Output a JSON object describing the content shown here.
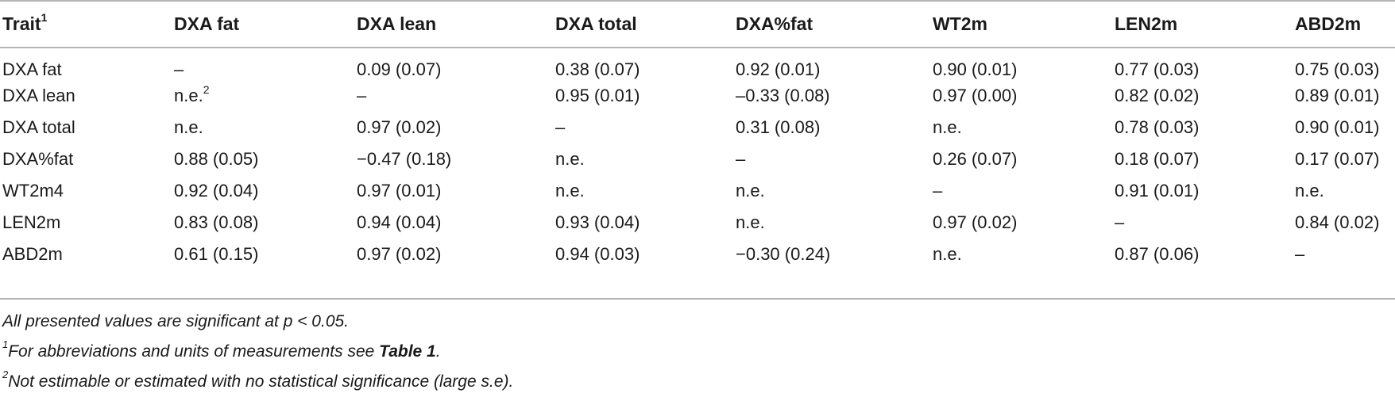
{
  "table": {
    "headers": [
      {
        "text": "Trait",
        "sup": "1"
      },
      {
        "text": "DXA fat",
        "sup": ""
      },
      {
        "text": "DXA lean",
        "sup": ""
      },
      {
        "text": "DXA total",
        "sup": ""
      },
      {
        "text": "DXA%fat",
        "sup": ""
      },
      {
        "text": "WT2m",
        "sup": ""
      },
      {
        "text": "LEN2m",
        "sup": ""
      },
      {
        "text": "ABD2m",
        "sup": ""
      }
    ],
    "rows": [
      [
        {
          "text": "DXA fat"
        },
        {
          "text": "–"
        },
        {
          "text": "0.09 (0.07)"
        },
        {
          "text": "0.38 (0.07)"
        },
        {
          "text": "0.92 (0.01)"
        },
        {
          "text": "0.90 (0.01)"
        },
        {
          "text": "0.77 (0.03)"
        },
        {
          "text": "0.75 (0.03)"
        }
      ],
      [
        {
          "text": "DXA lean"
        },
        {
          "text": "n.e.",
          "sup": "2"
        },
        {
          "text": "–"
        },
        {
          "text": "0.95 (0.01)"
        },
        {
          "text": "–0.33 (0.08)"
        },
        {
          "text": "0.97 (0.00)"
        },
        {
          "text": "0.82 (0.02)"
        },
        {
          "text": "0.89 (0.01)"
        }
      ],
      [
        {
          "text": "DXA total"
        },
        {
          "text": "n.e."
        },
        {
          "text": "0.97 (0.02)"
        },
        {
          "text": "–"
        },
        {
          "text": "0.31 (0.08)"
        },
        {
          "text": "n.e."
        },
        {
          "text": "0.78 (0.03)"
        },
        {
          "text": "0.90 (0.01)"
        }
      ],
      [
        {
          "text": "DXA%fat"
        },
        {
          "text": "0.88 (0.05)"
        },
        {
          "text": "−0.47 (0.18)"
        },
        {
          "text": "n.e."
        },
        {
          "text": "–"
        },
        {
          "text": "0.26 (0.07)"
        },
        {
          "text": "0.18 (0.07)"
        },
        {
          "text": "0.17 (0.07)"
        }
      ],
      [
        {
          "text": "WT2m4"
        },
        {
          "text": "0.92 (0.04)"
        },
        {
          "text": "0.97 (0.01)"
        },
        {
          "text": "n.e."
        },
        {
          "text": "n.e."
        },
        {
          "text": "–"
        },
        {
          "text": "0.91 (0.01)"
        },
        {
          "text": "n.e."
        }
      ],
      [
        {
          "text": "LEN2m"
        },
        {
          "text": "0.83 (0.08)"
        },
        {
          "text": "0.94 (0.04)"
        },
        {
          "text": "0.93 (0.04)"
        },
        {
          "text": "n.e."
        },
        {
          "text": "0.97 (0.02)"
        },
        {
          "text": "–"
        },
        {
          "text": "0.84 (0.02)"
        }
      ],
      [
        {
          "text": "ABD2m"
        },
        {
          "text": "0.61 (0.15)"
        },
        {
          "text": "0.97 (0.02)"
        },
        {
          "text": "0.94 (0.03)"
        },
        {
          "text": "−0.30 (0.24)"
        },
        {
          "text": "n.e."
        },
        {
          "text": "0.87 (0.06)"
        },
        {
          "text": "–"
        }
      ]
    ]
  },
  "notes": {
    "note0": "All presented values are significant at p < 0.05.",
    "note1_sup": "1",
    "note1_pre": "For abbreviations and units of measurements see ",
    "note1_bold": "Table 1",
    "note1_post": ".",
    "note2_sup": "2",
    "note2": "Not estimable or estimated with no statistical significance (large s.e)."
  }
}
